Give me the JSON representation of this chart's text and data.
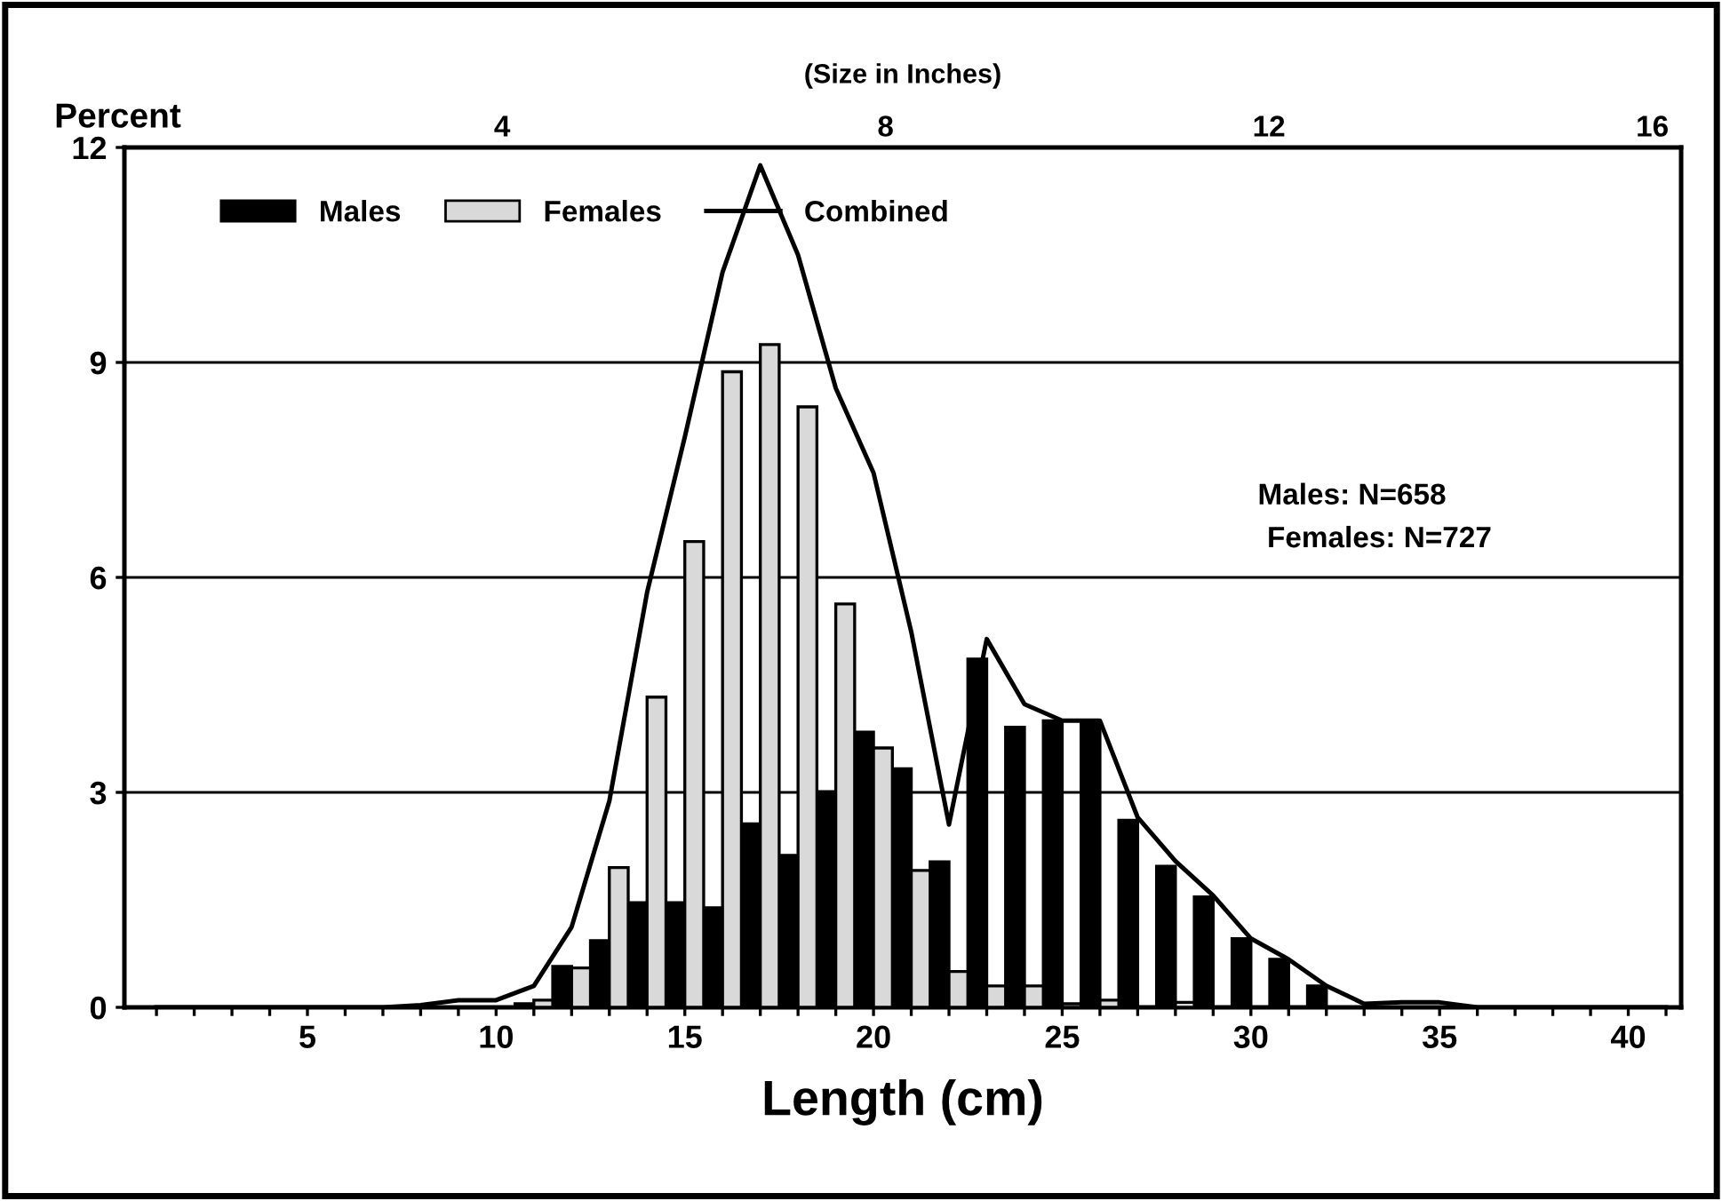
{
  "chart_data": {
    "type": "bar",
    "xlabel": "Length (cm)",
    "ylabel": "Percent",
    "x2label": "(Size in Inches)",
    "series": [
      {
        "name": "Males",
        "color": "#000000",
        "x": [
          11,
          12,
          13,
          14,
          15,
          16,
          17,
          18,
          19,
          20,
          21,
          22,
          23,
          24,
          25,
          26,
          27,
          28,
          29,
          30,
          31,
          32
        ],
        "values": [
          0.05,
          0.57,
          0.93,
          1.46,
          1.46,
          1.39,
          2.56,
          2.12,
          3.01,
          3.84,
          3.33,
          2.03,
          4.86,
          3.91,
          4.0,
          4.0,
          2.61,
          1.97,
          1.54,
          0.96,
          0.67,
          0.3
        ]
      },
      {
        "name": "Females",
        "color": "#d9d9d9",
        "x": [
          11,
          12,
          13,
          14,
          15,
          16,
          17,
          18,
          19,
          20,
          21,
          22,
          23,
          24,
          25,
          26,
          27,
          28
        ],
        "values": [
          0.1,
          0.55,
          1.95,
          4.33,
          6.5,
          8.87,
          9.25,
          8.38,
          5.63,
          3.62,
          1.91,
          0.5,
          0.3,
          0.3,
          0.05,
          0.1,
          null,
          0.07
        ]
      },
      {
        "name": "Combined",
        "type": "line",
        "color": "#000000",
        "x": [
          1,
          2,
          3,
          4,
          5,
          6,
          7,
          8,
          9,
          10,
          11,
          12,
          13,
          14,
          15,
          16,
          17,
          18,
          19,
          20,
          21,
          22,
          23,
          24,
          25,
          26,
          27,
          28,
          29,
          30,
          31,
          32,
          33,
          34,
          35,
          36,
          37,
          38,
          39,
          40,
          41
        ],
        "values": [
          0,
          0,
          0,
          0,
          0,
          0,
          0,
          0.03,
          0.1,
          0.1,
          0.3,
          1.12,
          2.88,
          5.79,
          7.96,
          10.26,
          11.75,
          10.5,
          8.64,
          7.46,
          5.24,
          2.55,
          5.14,
          4.23,
          4.0,
          4.0,
          2.65,
          2.04,
          1.56,
          0.96,
          0.67,
          0.3,
          0.05,
          0.07,
          0.07,
          0,
          0,
          0,
          0,
          0,
          0
        ]
      }
    ],
    "xlim": [
      0.15,
      41.4
    ],
    "xticks": [
      {
        "value": 1,
        "label": null
      },
      {
        "value": 2,
        "label": null
      },
      {
        "value": 3,
        "label": null
      },
      {
        "value": 4,
        "label": null
      },
      5,
      {
        "value": 6,
        "label": null
      },
      {
        "value": 7,
        "label": null
      },
      {
        "value": 8,
        "label": null
      },
      {
        "value": 9,
        "label": null
      },
      10,
      {
        "value": 11,
        "label": null
      },
      {
        "value": 12,
        "label": null
      },
      {
        "value": 13,
        "label": null
      },
      {
        "value": 14,
        "label": null
      },
      15,
      {
        "value": 16,
        "label": null
      },
      {
        "value": 17,
        "label": null
      },
      {
        "value": 18,
        "label": null
      },
      {
        "value": 19,
        "label": null
      },
      20,
      {
        "value": 21,
        "label": null
      },
      {
        "value": 22,
        "label": null
      },
      {
        "value": 23,
        "label": null
      },
      {
        "value": 24,
        "label": null
      },
      25,
      {
        "value": 26,
        "label": null
      },
      {
        "value": 27,
        "label": null
      },
      {
        "value": 28,
        "label": null
      },
      {
        "value": 29,
        "label": null
      },
      30,
      {
        "value": 31,
        "label": null
      },
      {
        "value": 32,
        "label": null
      },
      {
        "value": 33,
        "label": null
      },
      {
        "value": 34,
        "label": null
      },
      35,
      {
        "value": 36,
        "label": null
      },
      {
        "value": 37,
        "label": null
      },
      {
        "value": 38,
        "label": null
      },
      {
        "value": 39,
        "label": null
      },
      40,
      {
        "value": 41,
        "label": null
      }
    ],
    "x2lim": [
      0.059,
      16.3
    ],
    "x2ticks": [
      4,
      8,
      12,
      16
    ],
    "ylim": [
      0,
      12
    ],
    "yticks": [
      0,
      3,
      6,
      9,
      12
    ],
    "grid": "y",
    "legend": "top left",
    "marker": "none",
    "line_style": "solid",
    "annotations": [
      "Males: N=658",
      "Females: N=727"
    ]
  }
}
